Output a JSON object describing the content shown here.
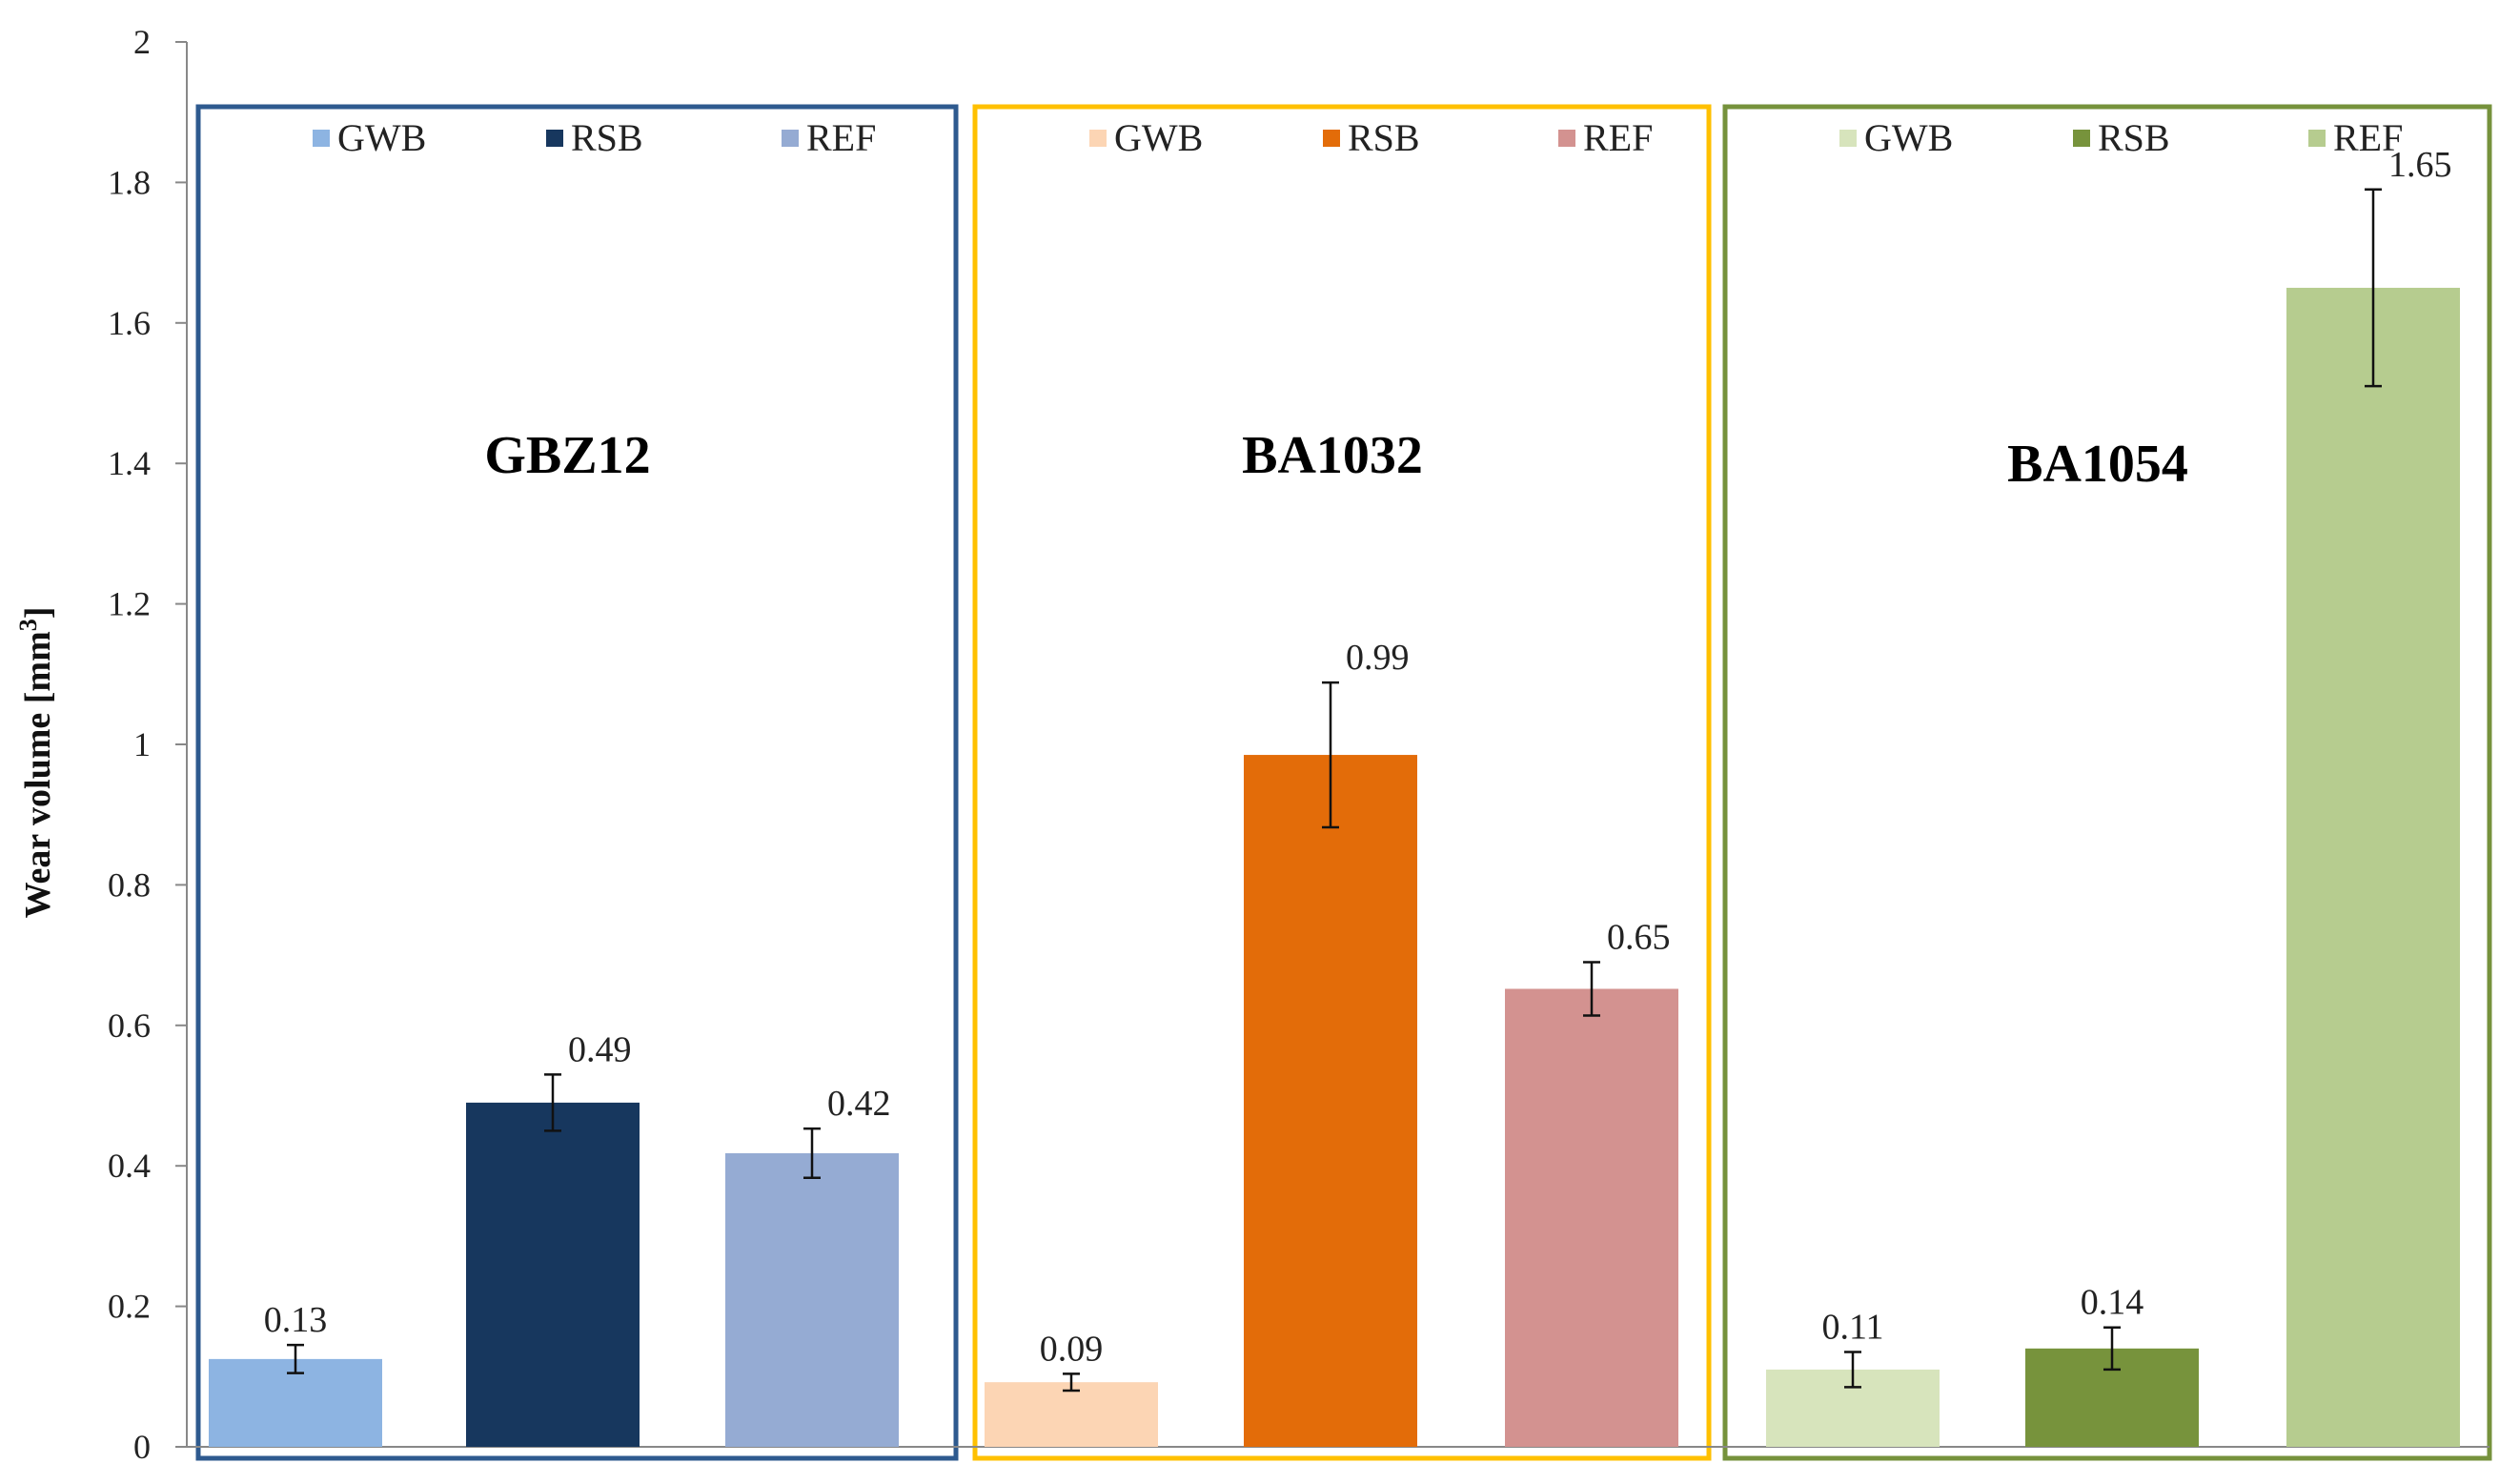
{
  "chart_data": {
    "type": "bar",
    "ylabel": "Wear volume [mm",
    "ylabel_sup": "3",
    "ylabel_end": "]",
    "ylim": [
      0,
      2
    ],
    "yticks": [
      0,
      0.2,
      0.4,
      0.6,
      0.8,
      1,
      1.2,
      1.4,
      1.6,
      1.8,
      2
    ],
    "grid": false,
    "categories": [
      "GWB",
      "RSB",
      "REF"
    ],
    "groups": [
      {
        "title": "GBZ12",
        "frame_color": "#2e5a8f",
        "bars": [
          {
            "name": "GWB",
            "value": 0.125,
            "label": "0.13",
            "err": 0.02,
            "color": "#8db4e2"
          },
          {
            "name": "RSB",
            "value": 0.49,
            "label": "0.49",
            "err": 0.04,
            "color": "#17375e"
          },
          {
            "name": "REF",
            "value": 0.418,
            "label": "0.42",
            "err": 0.035,
            "color": "#95abd3"
          }
        ]
      },
      {
        "title": "BA1032",
        "frame_color": "#ffc000",
        "bars": [
          {
            "name": "GWB",
            "value": 0.092,
            "label": "0.09",
            "err": 0.012,
            "color": "#fcd5b4"
          },
          {
            "name": "RSB",
            "value": 0.985,
            "label": "0.99",
            "err": 0.103,
            "color": "#e36c09"
          },
          {
            "name": "REF",
            "value": 0.652,
            "label": "0.65",
            "err": 0.038,
            "color": "#d39290"
          }
        ]
      },
      {
        "title": "BA1054",
        "frame_color": "#76923c",
        "bars": [
          {
            "name": "GWB",
            "value": 0.11,
            "label": "0.11",
            "err": 0.025,
            "color": "#d7e4bc"
          },
          {
            "name": "RSB",
            "value": 0.14,
            "label": "0.14",
            "err": 0.03,
            "color": "#77933c"
          },
          {
            "name": "REF",
            "value": 1.65,
            "label": "1.65",
            "err": 0.14,
            "color": "#b6cc8f"
          }
        ]
      }
    ]
  }
}
